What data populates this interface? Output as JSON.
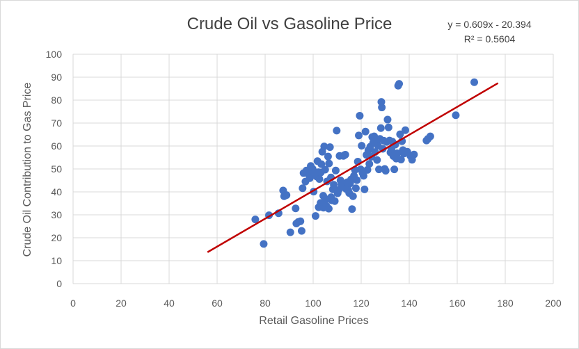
{
  "chart_data": {
    "type": "scatter",
    "title": "Crude Oil vs Gasoline Price",
    "xlabel": "Retail Gasoline Prices",
    "ylabel": "Crude Oil Contribution to Gas Price",
    "xlim": [
      0,
      200
    ],
    "ylim": [
      0,
      100
    ],
    "x_ticks": [
      0,
      20,
      40,
      60,
      80,
      100,
      120,
      140,
      160,
      180,
      200
    ],
    "y_ticks": [
      0,
      10,
      20,
      30,
      40,
      50,
      60,
      70,
      80,
      90,
      100
    ],
    "grid": true,
    "legend": "none",
    "marker_color": "#4472c4",
    "trendline": {
      "type": "linear",
      "color": "#c00000",
      "slope": 0.609,
      "intercept": -20.394,
      "x_start": 56,
      "x_end": 177,
      "equation": "y = 0.609x - 20.394",
      "r_squared": "R² = 0.5604"
    },
    "points": [
      [
        75.9,
        28.0
      ],
      [
        79.4,
        17.3
      ],
      [
        81.6,
        29.8
      ],
      [
        85.6,
        30.7
      ],
      [
        87.5,
        40.6
      ],
      [
        87.9,
        38.1
      ],
      [
        88.9,
        38.6
      ],
      [
        90.5,
        22.4
      ],
      [
        92.7,
        32.8
      ],
      [
        93.0,
        26.2
      ],
      [
        93.8,
        26.9
      ],
      [
        94.7,
        27.2
      ],
      [
        95.2,
        23.0
      ],
      [
        95.6,
        41.6
      ],
      [
        96.0,
        48.2
      ],
      [
        96.8,
        44.5
      ],
      [
        97.2,
        49.3
      ],
      [
        98.2,
        47.5
      ],
      [
        98.6,
        46.0
      ],
      [
        99.0,
        51.3
      ],
      [
        99.8,
        50.0
      ],
      [
        100.2,
        40.1
      ],
      [
        100.6,
        48.2
      ],
      [
        101.0,
        29.5
      ],
      [
        101.4,
        46.7
      ],
      [
        101.8,
        53.4
      ],
      [
        102.2,
        48.6
      ],
      [
        102.6,
        45.6
      ],
      [
        102.3,
        33.3
      ],
      [
        103.1,
        35.2
      ],
      [
        103.4,
        52.1
      ],
      [
        103.8,
        57.5
      ],
      [
        104.2,
        38.3
      ],
      [
        104.6,
        59.8
      ],
      [
        105.0,
        49.7
      ],
      [
        105.4,
        36.8
      ],
      [
        105.8,
        44.6
      ],
      [
        106.2,
        55.4
      ],
      [
        106.6,
        52.4
      ],
      [
        107.0,
        59.5
      ],
      [
        107.4,
        46.3
      ],
      [
        107.8,
        36.3
      ],
      [
        103.2,
        48.5
      ],
      [
        104.3,
        33.1
      ],
      [
        105.5,
        33.9
      ],
      [
        106.5,
        32.7
      ],
      [
        107.5,
        37.7
      ],
      [
        108.2,
        41.1
      ],
      [
        108.6,
        43.1
      ],
      [
        109.0,
        36.0
      ],
      [
        109.4,
        49.3
      ],
      [
        109.8,
        66.7
      ],
      [
        110.2,
        39.4
      ],
      [
        110.6,
        40.8
      ],
      [
        111.0,
        55.7
      ],
      [
        111.4,
        45.0
      ],
      [
        111.8,
        43.3
      ],
      [
        112.2,
        42.1
      ],
      [
        112.6,
        55.7
      ],
      [
        113.0,
        56.0
      ],
      [
        113.4,
        56.2
      ],
      [
        113.8,
        41.2
      ],
      [
        114.2,
        44.2
      ],
      [
        114.6,
        40.9
      ],
      [
        115.0,
        39.5
      ],
      [
        115.4,
        43.7
      ],
      [
        115.8,
        45.4
      ],
      [
        116.2,
        32.5
      ],
      [
        116.6,
        38.1
      ],
      [
        117.0,
        47.0
      ],
      [
        117.4,
        49.6
      ],
      [
        117.8,
        41.6
      ],
      [
        118.2,
        45.1
      ],
      [
        118.6,
        53.2
      ],
      [
        119.0,
        64.6
      ],
      [
        119.4,
        73.2
      ],
      [
        119.8,
        49.8
      ],
      [
        120.2,
        60.1
      ],
      [
        120.6,
        48.2
      ],
      [
        121.0,
        47.0
      ],
      [
        121.4,
        41.1
      ],
      [
        121.8,
        66.3
      ],
      [
        122.2,
        56.1
      ],
      [
        122.6,
        49.6
      ],
      [
        123.0,
        58.2
      ],
      [
        123.4,
        52.2
      ],
      [
        123.8,
        59.7
      ],
      [
        124.2,
        55.3
      ],
      [
        124.6,
        63.9
      ],
      [
        125.0,
        61.4
      ],
      [
        125.4,
        64.2
      ],
      [
        125.8,
        57.4
      ],
      [
        126.2,
        61.8
      ],
      [
        126.6,
        53.9
      ],
      [
        127.0,
        60.1
      ],
      [
        127.4,
        49.8
      ],
      [
        127.8,
        63.1
      ],
      [
        128.2,
        67.8
      ],
      [
        128.4,
        79.2
      ],
      [
        128.6,
        76.8
      ],
      [
        129.0,
        58.8
      ],
      [
        129.4,
        62.3
      ],
      [
        129.8,
        50.0
      ],
      [
        130.2,
        49.2
      ],
      [
        130.6,
        61.8
      ],
      [
        131.0,
        71.5
      ],
      [
        131.4,
        68.1
      ],
      [
        131.8,
        62.4
      ],
      [
        132.2,
        57.2
      ],
      [
        132.6,
        58.8
      ],
      [
        133.0,
        61.9
      ],
      [
        133.4,
        55.6
      ],
      [
        133.8,
        49.8
      ],
      [
        134.2,
        60.6
      ],
      [
        134.6,
        54.5
      ],
      [
        135.0,
        56.8
      ],
      [
        135.4,
        86.3
      ],
      [
        135.8,
        87.1
      ],
      [
        136.2,
        65.1
      ],
      [
        136.6,
        54.1
      ],
      [
        137.0,
        62.1
      ],
      [
        137.4,
        58.2
      ],
      [
        137.8,
        56.7
      ],
      [
        138.4,
        66.9
      ],
      [
        139.2,
        57.5
      ],
      [
        140.5,
        55.7
      ],
      [
        141.2,
        54.0
      ],
      [
        142.0,
        56.3
      ],
      [
        147.2,
        62.4
      ],
      [
        147.8,
        63.1
      ],
      [
        148.8,
        64.2
      ],
      [
        159.4,
        73.4
      ],
      [
        167.1,
        87.8
      ]
    ]
  }
}
